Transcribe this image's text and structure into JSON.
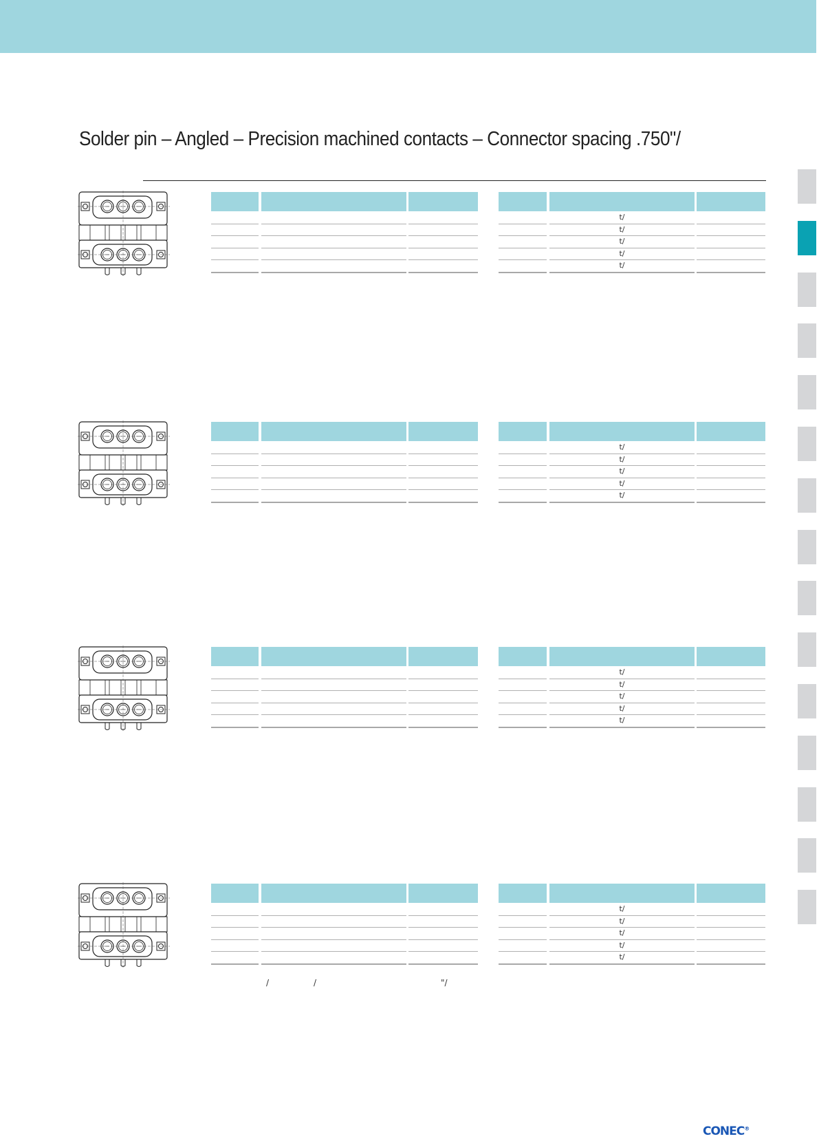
{
  "page": {
    "title": "Solder pin – Angled – Precision machined contacts – Connector spacing .750\"/",
    "brand": "CONEC",
    "brand_mark": "®",
    "accent_color": "#9fd6df",
    "active_tab_color": "#0aa2b3",
    "side_tabs": 15,
    "active_side_tab": 1
  },
  "sections": [
    {
      "right_table": {
        "rows": [
          "t/",
          "t/",
          "t/",
          "t/",
          "t/"
        ]
      }
    },
    {
      "right_table": {
        "rows": [
          "t/",
          "t/",
          "t/",
          "t/",
          "t/"
        ]
      }
    },
    {
      "right_table": {
        "rows": [
          "t/",
          "t/",
          "t/",
          "t/",
          "t/"
        ]
      }
    },
    {
      "right_table": {
        "rows": [
          "t/",
          "t/",
          "t/",
          "t/",
          "t/"
        ]
      }
    }
  ],
  "footnote": [
    "/",
    "/",
    "\"/"
  ]
}
